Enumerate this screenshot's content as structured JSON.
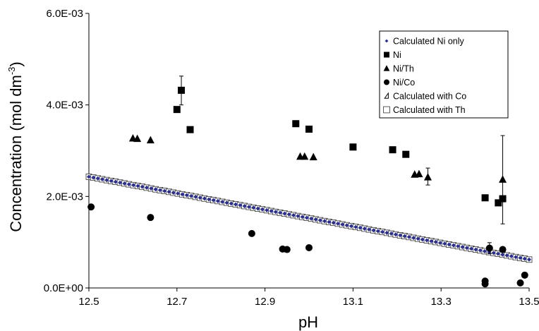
{
  "chart_data": {
    "type": "scatter",
    "xlabel": "pH",
    "ylabel": "Concentration (mol dm",
    "ylabel_sup": "-3",
    "ylabel_close": ")",
    "xlim": [
      12.5,
      13.5
    ],
    "ylim": [
      0,
      0.006
    ],
    "x_ticks": [
      12.5,
      12.7,
      12.9,
      13.1,
      13.3,
      13.5
    ],
    "x_tick_labels": [
      "12.5",
      "12.7",
      "12.9",
      "13.1",
      "13.3",
      "13.5"
    ],
    "y_ticks": [
      0,
      0.002,
      0.004,
      0.006
    ],
    "y_tick_labels": [
      "0.0E+00",
      "2.0E-03",
      "4.0E-03",
      "6.0E-03"
    ],
    "grid": false,
    "legend_position": "top-right",
    "series": [
      {
        "name": "Calculated Ni only",
        "marker": "small-diamond",
        "color": "#2b2f8f",
        "line": {
          "x0": 12.5,
          "y0": 0.00243,
          "x1": 13.5,
          "y1": 0.00062,
          "count": 100
        }
      },
      {
        "name": "Ni",
        "marker": "square",
        "color": "#000000",
        "points": [
          [
            12.7,
            0.0039
          ],
          [
            12.71,
            0.00432
          ],
          [
            12.73,
            0.00346
          ],
          [
            12.97,
            0.00359
          ],
          [
            13.0,
            0.00347
          ],
          [
            13.1,
            0.00308
          ],
          [
            13.19,
            0.00302
          ],
          [
            13.22,
            0.00292
          ],
          [
            13.4,
            0.00197
          ],
          [
            13.43,
            0.00186
          ],
          [
            13.44,
            0.00195
          ]
        ],
        "error_bars": [
          {
            "x": 12.71,
            "low": 0.004,
            "high": 0.00463
          },
          {
            "x": 13.44,
            "low": 0.0014,
            "high": 0.00333
          }
        ]
      },
      {
        "name": "Ni/Th",
        "marker": "triangle",
        "color": "#000000",
        "points": [
          [
            12.6,
            0.00327
          ],
          [
            12.61,
            0.00326
          ],
          [
            12.64,
            0.00323
          ],
          [
            12.98,
            0.00287
          ],
          [
            12.99,
            0.00287
          ],
          [
            13.01,
            0.00286
          ],
          [
            13.24,
            0.00248
          ],
          [
            13.25,
            0.00249
          ],
          [
            13.27,
            0.00242
          ],
          [
            13.44,
            0.00237
          ]
        ],
        "error_bars": [
          {
            "x": 13.27,
            "low": 0.00225,
            "high": 0.00262
          }
        ]
      },
      {
        "name": "Ni/Co",
        "marker": "circle",
        "color": "#000000",
        "points": [
          [
            12.505,
            0.00177
          ],
          [
            12.64,
            0.00154
          ],
          [
            12.87,
            0.00119
          ],
          [
            12.94,
            0.00085
          ],
          [
            12.95,
            0.00084
          ],
          [
            13.0,
            0.00088
          ],
          [
            13.4,
            0.00015
          ],
          [
            13.4,
            9e-05
          ],
          [
            13.41,
            0.00087
          ],
          [
            13.44,
            0.00084
          ],
          [
            13.48,
            0.00011
          ],
          [
            13.49,
            0.00028
          ]
        ],
        "error_bars": [
          {
            "x": 13.41,
            "low": 0.00075,
            "high": 0.00099
          }
        ]
      },
      {
        "name": "Calculated with Co",
        "marker": "open-triangle",
        "color": "#000000",
        "points": []
      },
      {
        "name": "Calculated with Th",
        "marker": "open-square",
        "color": "#000000",
        "line": {
          "x0": 12.5,
          "y0": 0.00243,
          "x1": 13.5,
          "y1": 0.00062,
          "count": 100
        }
      }
    ]
  }
}
